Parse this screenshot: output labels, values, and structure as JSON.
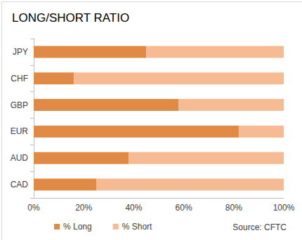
{
  "chart_data": {
    "type": "bar",
    "title": "LONG/SHORT RATIO",
    "orientation": "horizontal",
    "stacked": true,
    "categories": [
      "JPY",
      "CHF",
      "GBP",
      "EUR",
      "AUD",
      "CAD"
    ],
    "series": [
      {
        "name": "% Long",
        "color": "#e08a45",
        "values": [
          45,
          16,
          58,
          82,
          38,
          25
        ]
      },
      {
        "name": "% Short",
        "color": "#f7bb93",
        "values": [
          55,
          84,
          42,
          18,
          62,
          75
        ]
      }
    ],
    "xlim": [
      0,
      100
    ],
    "xticks": [
      {
        "value": 0,
        "label": "0%"
      },
      {
        "value": 20,
        "label": "20%"
      },
      {
        "value": 40,
        "label": "40%"
      },
      {
        "value": 60,
        "label": "60%"
      },
      {
        "value": 80,
        "label": "80%"
      },
      {
        "value": 100,
        "label": "100%"
      }
    ],
    "grid": false,
    "legend": "bottom",
    "annotations": [
      "Source: CFTC"
    ]
  }
}
